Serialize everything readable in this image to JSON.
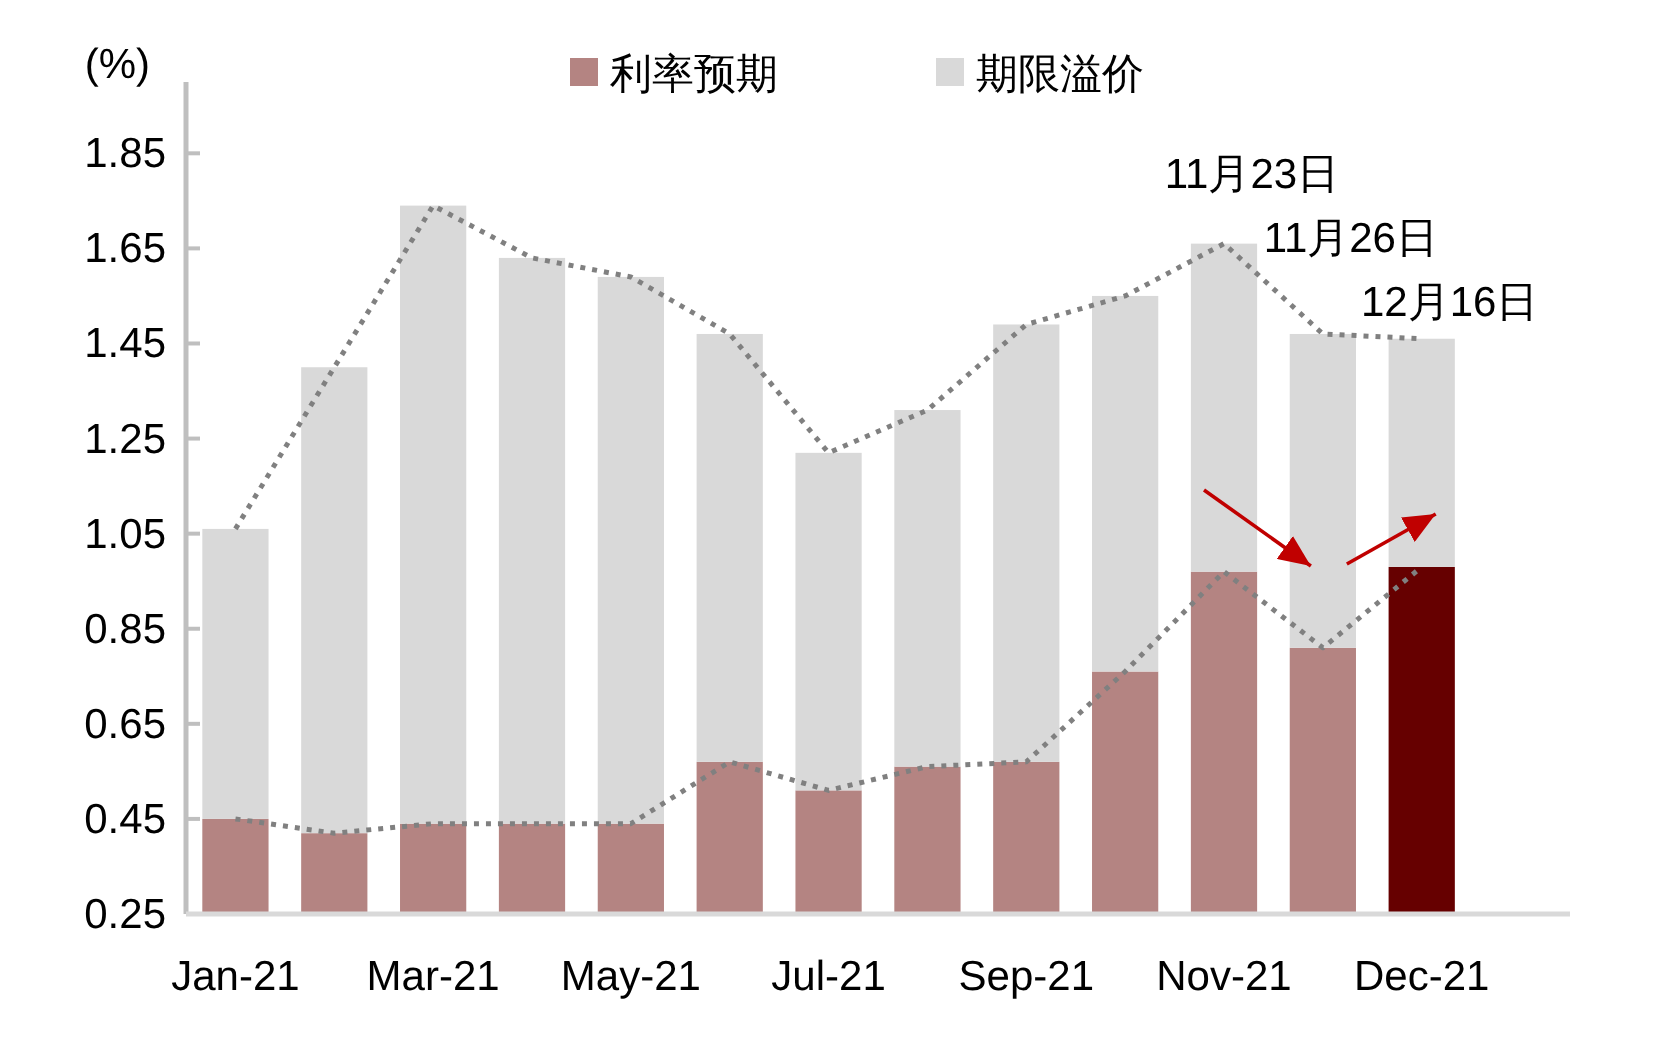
{
  "chart_data": {
    "type": "bar",
    "stacked": true,
    "ylabel": "(%)",
    "categories": [
      "Jan-21",
      null,
      "Mar-21",
      null,
      "May-21",
      null,
      "Jul-21",
      null,
      "Sep-21",
      null,
      "Nov-21",
      null,
      "Dec-21",
      null
    ],
    "series": [
      {
        "name": "利率预期",
        "color": "#b48482",
        "colors": [
          "#b48482",
          "#b48482",
          "#b48482",
          "#b48482",
          "#b48482",
          "#b48482",
          "#b48482",
          "#b48482",
          "#b48482",
          "#b48482",
          "#b48482",
          "#b48482",
          "#660000",
          null
        ],
        "values": [
          0.45,
          0.42,
          0.44,
          0.44,
          0.44,
          0.57,
          0.51,
          0.56,
          0.57,
          0.76,
          0.97,
          0.81,
          0.98,
          null
        ]
      },
      {
        "name": "期限溢价",
        "color": "#d9d9d9",
        "values": [
          0.61,
          0.98,
          1.3,
          1.19,
          1.15,
          0.9,
          0.71,
          0.75,
          0.92,
          0.79,
          0.69,
          0.66,
          0.48,
          null
        ]
      },
      {
        "type": "line",
        "line_style": "dotted",
        "color": "#808080",
        "values": [
          0.45,
          0.42,
          0.44,
          0.44,
          0.44,
          0.57,
          0.51,
          0.56,
          0.57,
          0.76,
          0.97,
          0.81,
          0.98,
          null
        ]
      },
      {
        "type": "line",
        "line_style": "dotted",
        "color": "#808080",
        "values": [
          1.06,
          1.4,
          1.74,
          1.63,
          1.59,
          1.47,
          1.22,
          1.31,
          1.49,
          1.55,
          1.66,
          1.47,
          1.46,
          null
        ]
      }
    ],
    "ylim": [
      0.25,
      2.0
    ],
    "yticks": [
      0.25,
      0.45,
      0.65,
      0.85,
      1.05,
      1.25,
      1.45,
      1.65,
      1.85
    ],
    "grid": false,
    "legend": "top",
    "annotations": [
      "11月23日",
      "11月26日",
      "12月16日"
    ]
  }
}
